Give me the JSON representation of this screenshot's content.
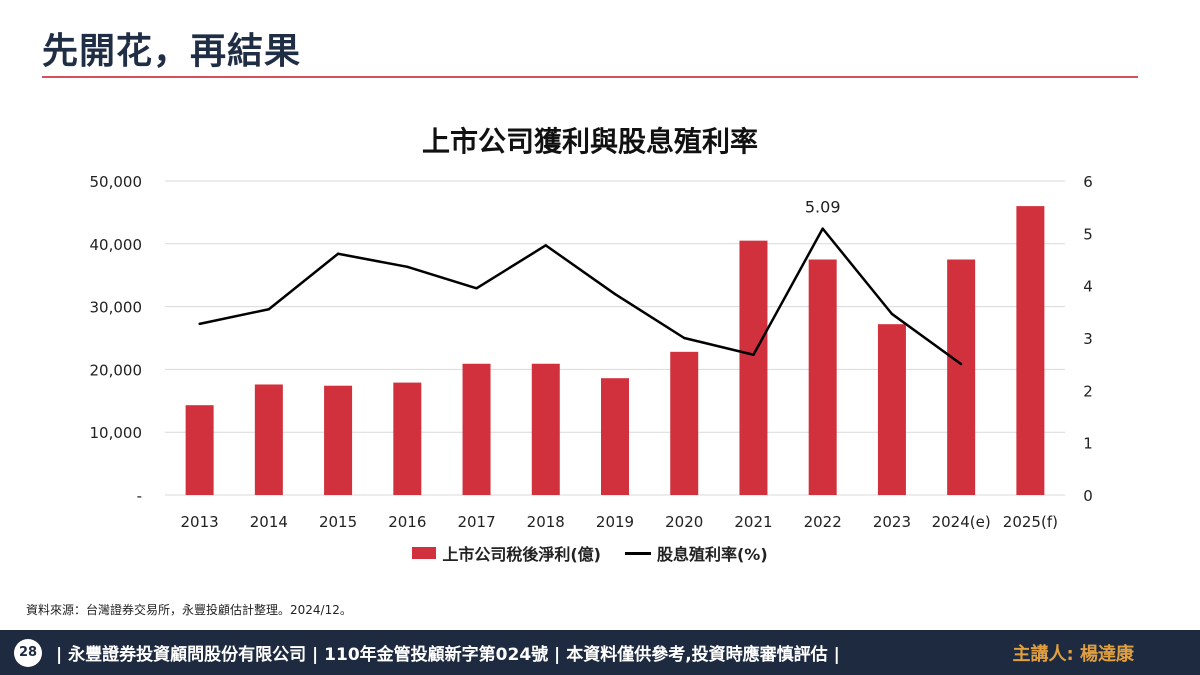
{
  "header": {
    "title": "先開花，再結果"
  },
  "chart_data": {
    "type": "bar",
    "title": "上市公司獲利與股息殖利率",
    "categories": [
      "2013",
      "2014",
      "2015",
      "2016",
      "2017",
      "2018",
      "2019",
      "2020",
      "2021",
      "2022",
      "2023",
      "2024(e)",
      "2025(f)"
    ],
    "series": [
      {
        "name": "上市公司稅後淨利(億)",
        "type": "bar",
        "axis": "left",
        "color": "#d0313d",
        "values": [
          14300,
          17600,
          17400,
          17900,
          20900,
          20900,
          18600,
          22800,
          40500,
          37500,
          27200,
          37500,
          46000
        ]
      },
      {
        "name": "股息殖利率(%)",
        "type": "line",
        "axis": "right",
        "color": "#000000",
        "values": [
          3.27,
          3.55,
          4.61,
          4.36,
          3.95,
          4.77,
          3.84,
          3.0,
          2.68,
          5.09,
          3.46,
          2.5,
          null
        ]
      }
    ],
    "y_left": {
      "ylim": [
        0,
        50000
      ],
      "ticks": [
        "-",
        "10,000",
        "20,000",
        "30,000",
        "40,000",
        "50,000"
      ]
    },
    "y_right": {
      "ylim": [
        0,
        6
      ],
      "ticks": [
        "0",
        "1",
        "2",
        "3",
        "4",
        "5",
        "6"
      ]
    },
    "annotations": [
      {
        "category": "2022",
        "text": "5.09"
      }
    ],
    "grid": true,
    "legend": "bottom"
  },
  "footer": {
    "page_number": "28",
    "text": "| 永豐證券投資顧問股份有限公司 | 110年金管投顧新字第024號 | 本資料僅供參考,投資時應審慎評估 |",
    "speaker": "主講人: 楊達康"
  },
  "source": "資料來源：台灣證券交易所，永豐投顧估計整理。2024/12。"
}
